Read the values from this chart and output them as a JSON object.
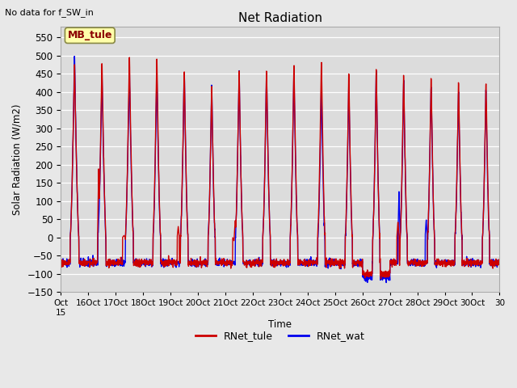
{
  "title": "Net Radiation",
  "xlabel": "Time",
  "ylabel": "Solar Radiation (W/m2)",
  "subtitle": "No data for f_SW_in",
  "legend_label1": "RNet_tule",
  "legend_label2": "RNet_wat",
  "color1": "#cc0000",
  "color2": "#0000ee",
  "ylim": [
    -150,
    580
  ],
  "yticks": [
    -150,
    -100,
    -50,
    0,
    50,
    100,
    150,
    200,
    250,
    300,
    350,
    400,
    450,
    500,
    550
  ],
  "inset_label": "MB_tule",
  "bg_color": "#e8e8e8",
  "axes_bg_color": "#dcdcdc",
  "start_day": 15,
  "n_days": 16,
  "pts_per_day": 144,
  "night_base": -70,
  "line_width": 1.0
}
